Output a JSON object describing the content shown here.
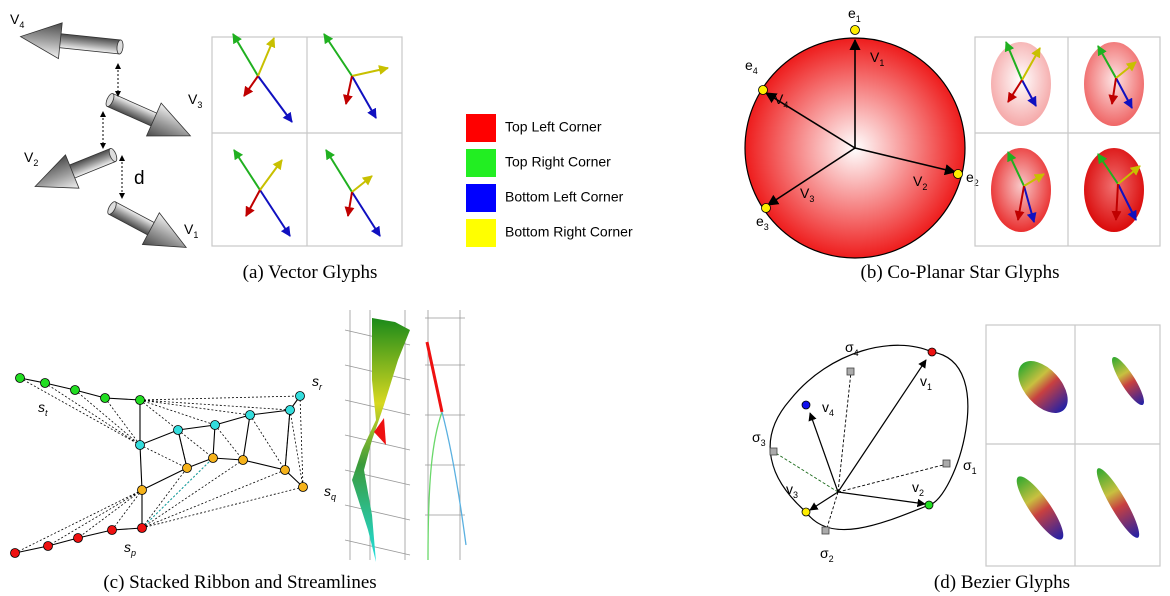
{
  "panel_a": {
    "caption": "(a) Vector Glyphs",
    "labels": [
      {
        "base": "V",
        "sub": "4"
      },
      {
        "base": "V",
        "sub": "3"
      },
      {
        "base": "V",
        "sub": "2"
      },
      {
        "base": "V",
        "sub": "1"
      }
    ],
    "distance": "d"
  },
  "legend": [
    "Top Left Corner",
    "Top Right Corner",
    "Bottom Left Corner",
    "Bottom Right Corner"
  ],
  "panel_b": {
    "caption": "(b) Co-Planar Star Glyphs",
    "vectors": [
      {
        "base": "V",
        "sub": "1"
      },
      {
        "base": "V",
        "sub": "2"
      },
      {
        "base": "V",
        "sub": "3"
      },
      {
        "base": "V",
        "sub": "4"
      }
    ],
    "points": [
      {
        "base": "e",
        "sub": "1"
      },
      {
        "base": "e",
        "sub": "2"
      },
      {
        "base": "e",
        "sub": "3"
      },
      {
        "base": "e",
        "sub": "4"
      }
    ]
  },
  "panel_c": {
    "caption": "(c) Stacked Ribbon and Streamlines",
    "labels": [
      {
        "base": "s",
        "sub": "t"
      },
      {
        "base": "s",
        "sub": "r"
      },
      {
        "base": "s",
        "sub": "q"
      },
      {
        "base": "s",
        "sub": "p"
      }
    ]
  },
  "panel_d": {
    "caption": "(d) Bezier Glyphs",
    "sigmas": [
      {
        "base": "σ",
        "sub": "1"
      },
      {
        "base": "σ",
        "sub": "2"
      },
      {
        "base": "σ",
        "sub": "3"
      },
      {
        "base": "σ",
        "sub": "4"
      }
    ],
    "vectors": [
      {
        "base": "v",
        "sub": "1"
      },
      {
        "base": "v",
        "sub": "2"
      },
      {
        "base": "v",
        "sub": "3"
      },
      {
        "base": "v",
        "sub": "4"
      }
    ]
  }
}
